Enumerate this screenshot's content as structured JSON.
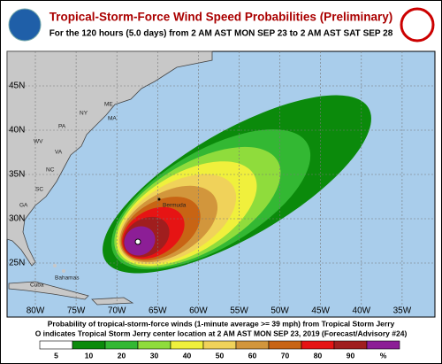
{
  "header": {
    "title": "Tropical-Storm-Force Wind Speed Probabilities (Preliminary)",
    "subtitle": "For the 120 hours (5.0 days) from 2 AM AST MON SEP 23 to 2 AM AST SAT SEP 28"
  },
  "map": {
    "lat_labels": [
      "45N",
      "40N",
      "35N",
      "30N",
      "25N"
    ],
    "lon_labels": [
      "80W",
      "75W",
      "70W",
      "65W",
      "60W",
      "55W",
      "50W",
      "45W",
      "40W",
      "35W"
    ],
    "places": [
      "ME",
      "NY",
      "MA",
      "PA",
      "WV",
      "VA",
      "NC",
      "SC",
      "GA",
      "Bermuda",
      "Bahamas",
      "Cuba"
    ]
  },
  "caption": [
    "Probability of tropical-storm-force winds (1-minute average >= 39 mph) from Tropical Storm Jerry",
    "O indicates Tropical Storm Jerry center location at 2 AM AST MON SEP 23, 2019 (Forecast/Advisory #24)"
  ],
  "legend": {
    "labels": [
      "5",
      "10",
      "20",
      "30",
      "40",
      "50",
      "60",
      "70",
      "80",
      "90",
      "%"
    ],
    "colors": [
      "#ffffff",
      "#0b8a0b",
      "#33b833",
      "#8fdc3c",
      "#f0f03c",
      "#f0d25a",
      "#d2963c",
      "#c86414",
      "#e61414",
      "#a01e1e",
      "#8c1e96"
    ]
  }
}
